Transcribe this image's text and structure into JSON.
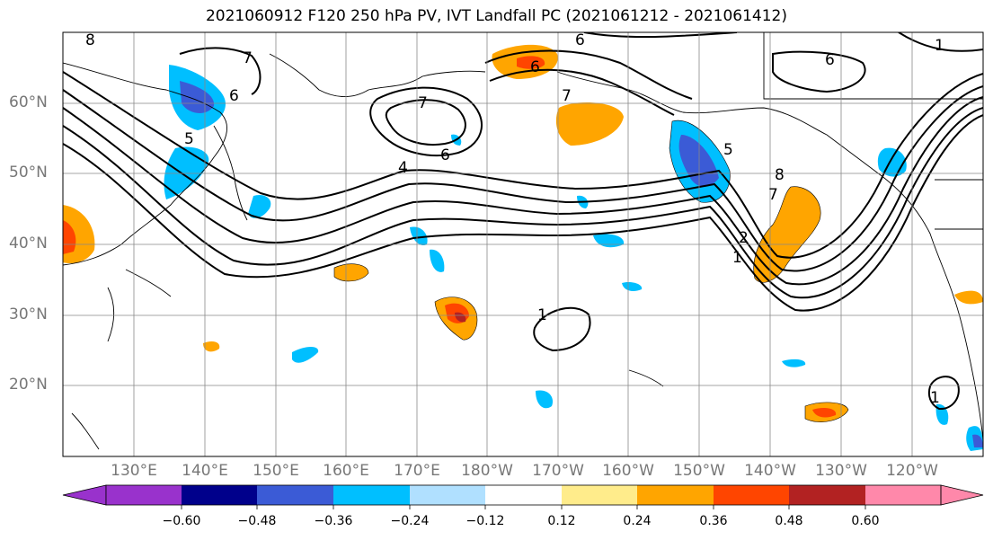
{
  "title": "2021060912 F120 250 hPa PV, IVT Landfall PC (2021061212 - 2021061412)",
  "lat_labels": [
    "60°N",
    "50°N",
    "40°N",
    "30°N",
    "20°N"
  ],
  "lon_labels": [
    "130°E",
    "140°E",
    "150°E",
    "160°E",
    "170°E",
    "180°W",
    "170°W",
    "160°W",
    "150°W",
    "140°W",
    "130°W",
    "120°W"
  ],
  "contour_labels": [
    "8",
    "7",
    "6",
    "5",
    "4",
    "6",
    "7",
    "6",
    "7",
    "6",
    "5",
    "8",
    "7",
    "2",
    "1",
    "1",
    "6",
    "1",
    "1"
  ],
  "colorbar": {
    "tick_labels": [
      "−0.60",
      "−0.48",
      "−0.36",
      "−0.24",
      "−0.12",
      "0.12",
      "0.24",
      "0.36",
      "0.48",
      "0.60"
    ],
    "colors": [
      "#9932cc",
      "#00008b",
      "#3b5bd6",
      "#00bfff",
      "#b0e0ff",
      "#ffffff",
      "#ffec8b",
      "#ffa500",
      "#ff4500",
      "#b22222",
      "#ff88aa"
    ]
  },
  "colors": {
    "strong_negative": "#3b5bd6",
    "negative": "#00bfff",
    "weak_negative": "#b0e0ff",
    "weak_positive": "#ffec8b",
    "positive": "#ffa500",
    "strong_positive": "#ff4500",
    "very_strong_positive": "#b22222"
  }
}
